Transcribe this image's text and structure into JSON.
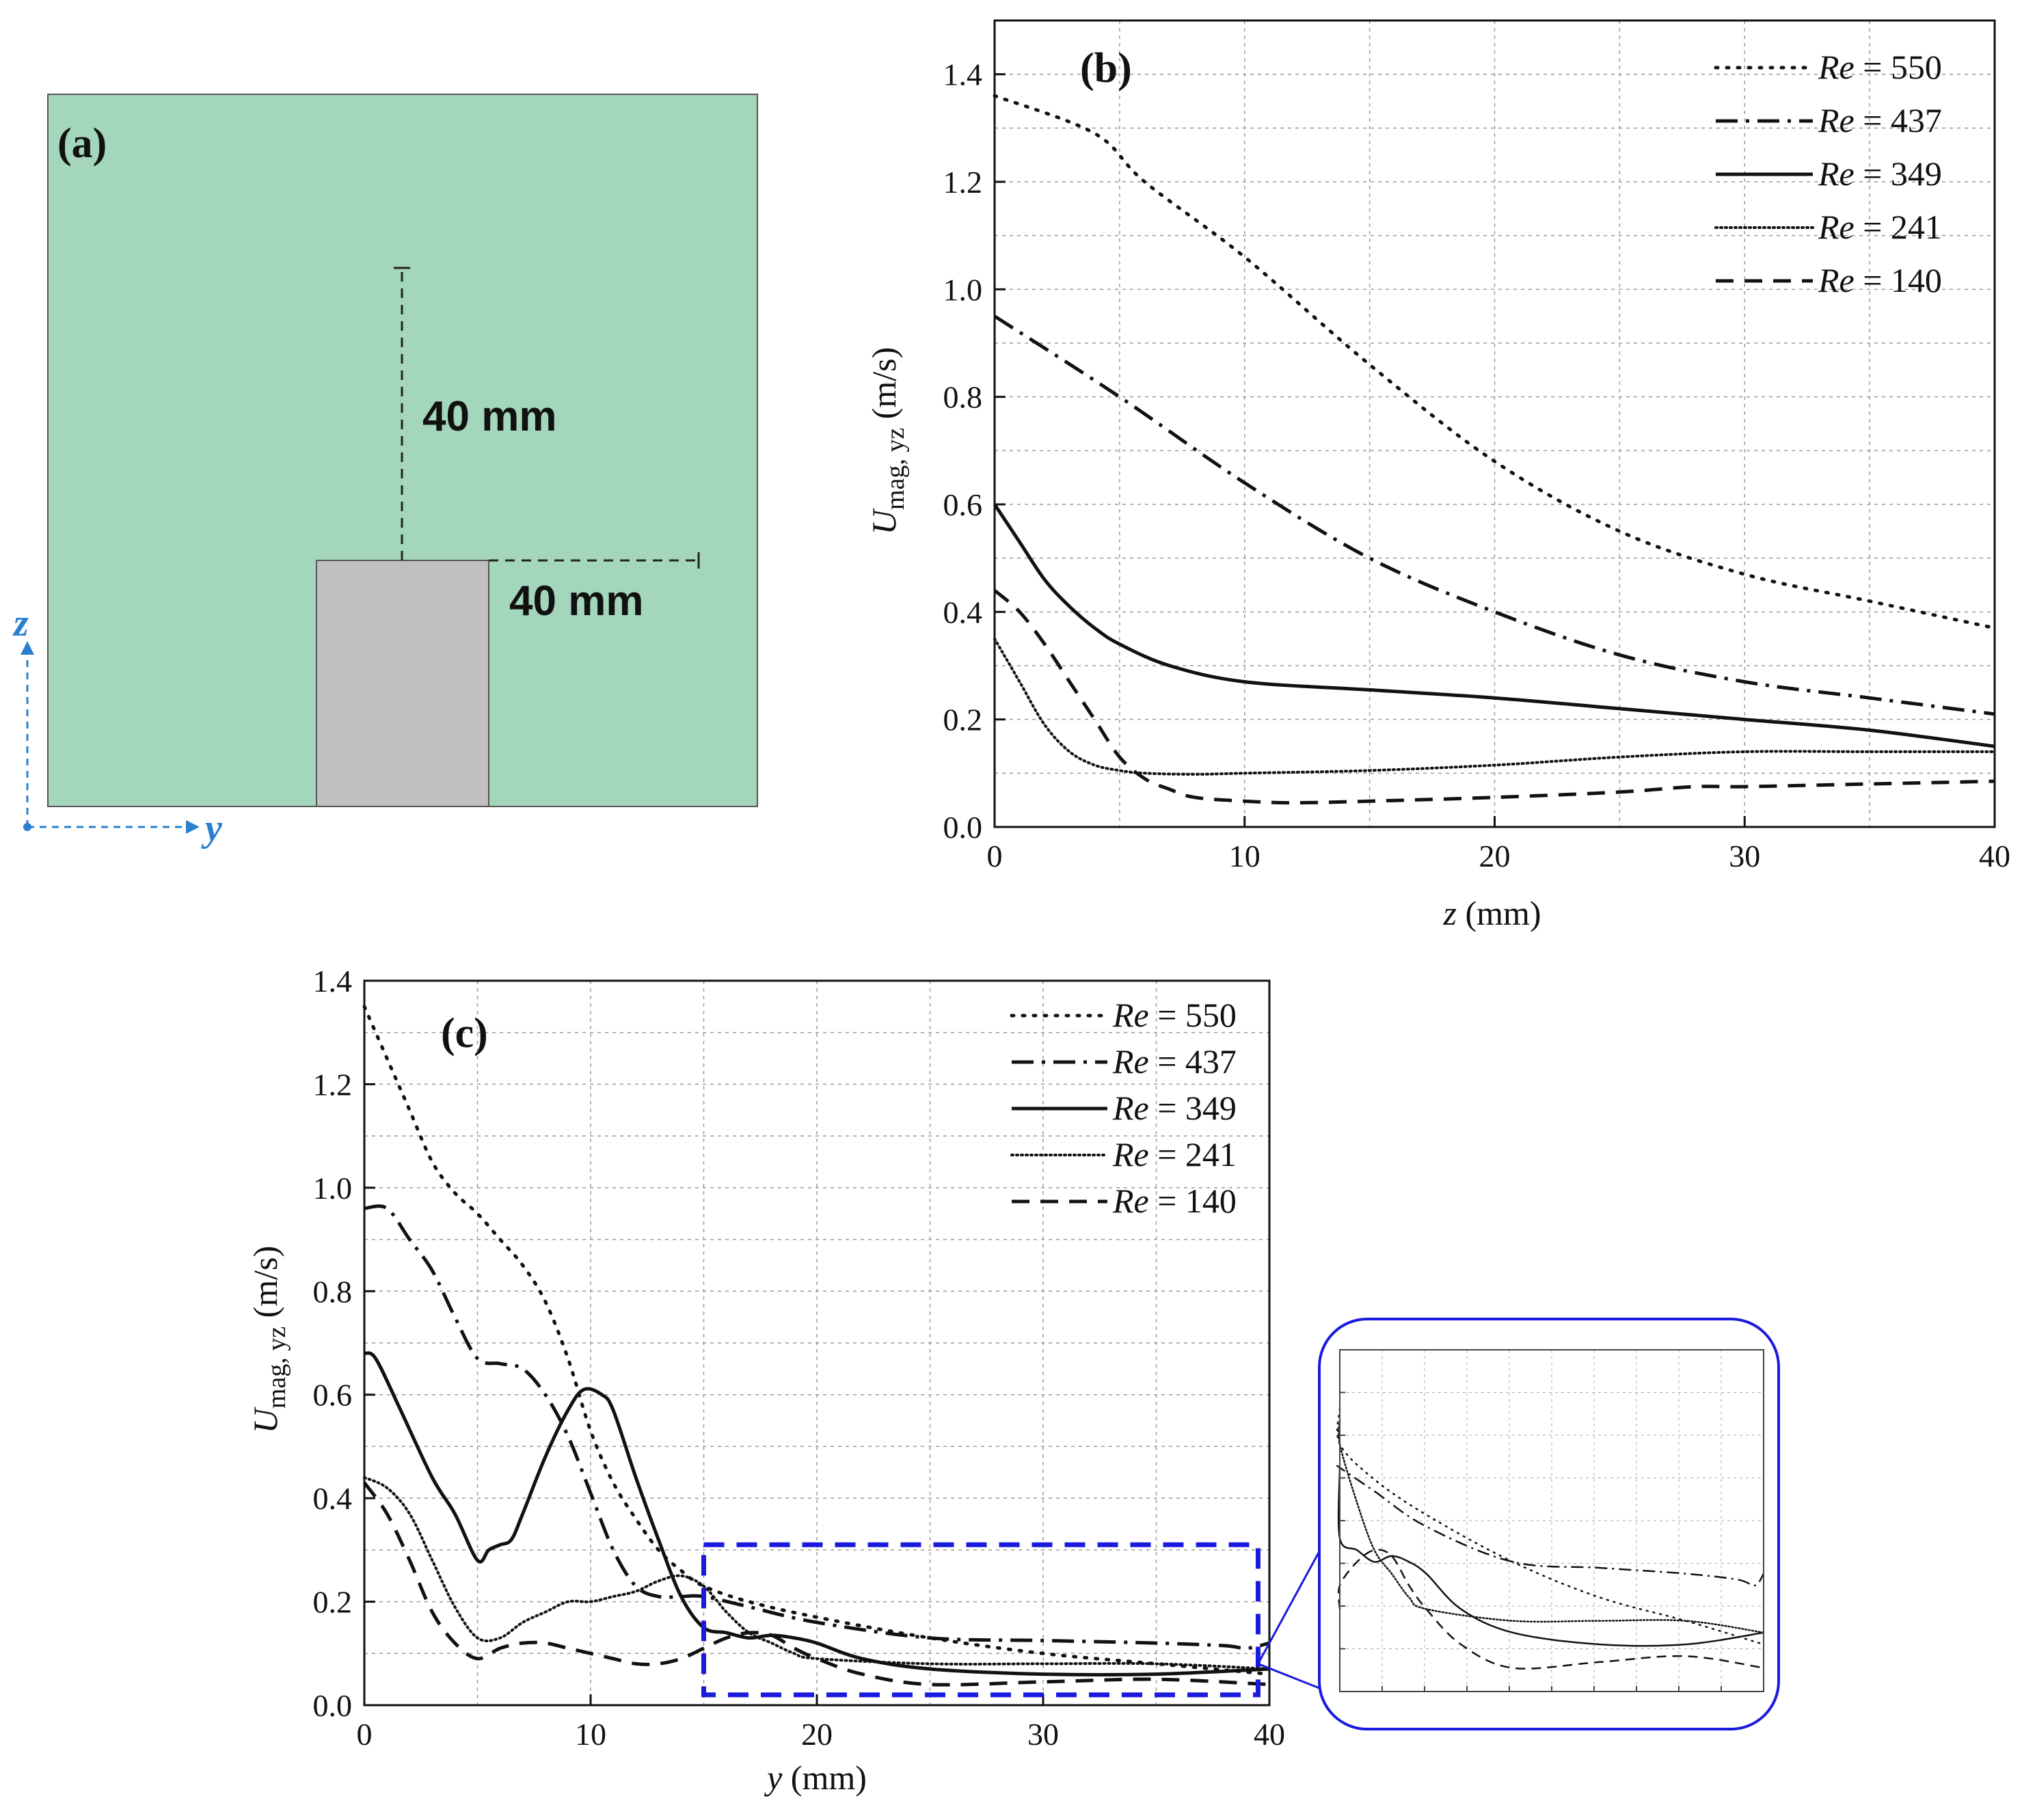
{
  "panel_a": {
    "label": "(a)",
    "dim_vertical": "40 mm",
    "dim_horizontal": "40 mm",
    "axis_z": "z",
    "axis_y": "y",
    "fluid_color": "#a4d6bb",
    "block_color": "#c0c0c0",
    "axis_color": "#2a7fd0"
  },
  "zoom_box_color": "#1a1adf",
  "chart_data": [
    {
      "id": "b",
      "type": "line",
      "panel_label": "(b)",
      "xlabel_italic": "z",
      "xlabel_rest": " (mm)",
      "ylabel_main": "U",
      "ylabel_sub": "mag, yz",
      "ylabel_unit": " (m/s)",
      "xlim": [
        0,
        40
      ],
      "ylim": [
        0,
        1.5
      ],
      "xticks": [
        0,
        10,
        20,
        30,
        40
      ],
      "xtick_labels": [
        "0",
        "10",
        "20",
        "30",
        "40"
      ],
      "yticks": [
        0,
        0.2,
        0.4,
        0.6,
        0.8,
        1.0,
        1.2,
        1.4
      ],
      "ytick_labels": [
        "0.0",
        "0.2",
        "0.4",
        "0.6",
        "0.8",
        "1.0",
        "1.2",
        "1.4"
      ],
      "grid": true,
      "legend_position": "top-right",
      "series": [
        {
          "name": "Re = 550",
          "re_italic": "Re",
          "re_value": " = 550",
          "style": "dot-spaced",
          "x": [
            0,
            4,
            6,
            10,
            15,
            20,
            25,
            30,
            35,
            40
          ],
          "y": [
            1.36,
            1.29,
            1.2,
            1.06,
            0.86,
            0.68,
            0.55,
            0.47,
            0.42,
            0.37
          ]
        },
        {
          "name": "Re = 437",
          "re_italic": "Re",
          "re_value": " = 437",
          "style": "dashdot",
          "x": [
            0,
            5,
            10,
            15,
            20,
            25,
            30,
            35,
            40
          ],
          "y": [
            0.95,
            0.8,
            0.64,
            0.5,
            0.4,
            0.32,
            0.27,
            0.24,
            0.21
          ]
        },
        {
          "name": "Re = 349",
          "re_italic": "Re",
          "re_value": " = 349",
          "style": "solid",
          "x": [
            0,
            1,
            2,
            3,
            4,
            5,
            7,
            10,
            15,
            20,
            25,
            30,
            35,
            40
          ],
          "y": [
            0.6,
            0.53,
            0.46,
            0.41,
            0.37,
            0.34,
            0.3,
            0.27,
            0.255,
            0.24,
            0.22,
            0.2,
            0.18,
            0.15
          ]
        },
        {
          "name": "Re = 241",
          "re_italic": "Re",
          "re_value": " = 241",
          "style": "dotted",
          "x": [
            0,
            1,
            2,
            3,
            4,
            5,
            6,
            8,
            10,
            15,
            20,
            25,
            30,
            35,
            40
          ],
          "y": [
            0.35,
            0.27,
            0.19,
            0.14,
            0.115,
            0.105,
            0.1,
            0.098,
            0.1,
            0.105,
            0.115,
            0.13,
            0.14,
            0.14,
            0.14
          ]
        },
        {
          "name": "Re = 140",
          "re_italic": "Re",
          "re_value": " = 140",
          "style": "dashed",
          "x": [
            0,
            1,
            2,
            3,
            4,
            5,
            6,
            7,
            8,
            10,
            12,
            15,
            20,
            25,
            28,
            30,
            35,
            40
          ],
          "y": [
            0.44,
            0.4,
            0.34,
            0.27,
            0.2,
            0.13,
            0.09,
            0.07,
            0.055,
            0.048,
            0.045,
            0.048,
            0.055,
            0.065,
            0.075,
            0.075,
            0.08,
            0.085
          ]
        }
      ]
    },
    {
      "id": "c",
      "type": "line",
      "panel_label": "(c)",
      "xlabel_italic": "y",
      "xlabel_rest": " (mm)",
      "ylabel_main": "U",
      "ylabel_sub": "mag, yz",
      "ylabel_unit": " (m/s)",
      "xlim": [
        0,
        40
      ],
      "ylim": [
        0,
        1.4
      ],
      "xticks": [
        0,
        10,
        20,
        30,
        40
      ],
      "xtick_labels": [
        "0",
        "10",
        "20",
        "30",
        "40"
      ],
      "yticks": [
        0,
        0.2,
        0.4,
        0.6,
        0.8,
        1.0,
        1.2,
        1.4
      ],
      "ytick_labels": [
        "0.0",
        "0.2",
        "0.4",
        "0.6",
        "0.8",
        "1.0",
        "1.2",
        "1.4"
      ],
      "grid": true,
      "legend_position": "top-right",
      "zoom_region": {
        "x": [
          15,
          39.5
        ],
        "y": [
          0.02,
          0.31
        ]
      },
      "series": [
        {
          "name": "Re = 550",
          "re_italic": "Re",
          "re_value": " = 550",
          "style": "dot-spaced",
          "x": [
            0,
            1,
            2,
            3,
            4,
            5,
            6,
            7,
            8,
            9,
            10,
            11,
            12,
            13,
            14,
            15,
            17,
            20,
            25,
            30,
            35,
            40
          ],
          "y": [
            1.35,
            1.25,
            1.15,
            1.05,
            0.99,
            0.95,
            0.9,
            0.85,
            0.78,
            0.67,
            0.53,
            0.43,
            0.36,
            0.3,
            0.26,
            0.23,
            0.2,
            0.17,
            0.13,
            0.1,
            0.08,
            0.06
          ]
        },
        {
          "name": "Re = 437",
          "re_italic": "Re",
          "re_value": " = 437",
          "style": "dashdot",
          "x": [
            0,
            1,
            2,
            3,
            4,
            5,
            6,
            7,
            8,
            9,
            10,
            11,
            12,
            13,
            14,
            15,
            17,
            20,
            25,
            30,
            35,
            38,
            39,
            40
          ],
          "y": [
            0.96,
            0.96,
            0.9,
            0.84,
            0.75,
            0.67,
            0.66,
            0.65,
            0.6,
            0.52,
            0.41,
            0.3,
            0.23,
            0.21,
            0.21,
            0.21,
            0.19,
            0.16,
            0.13,
            0.125,
            0.12,
            0.115,
            0.11,
            0.12
          ]
        },
        {
          "name": "Re = 349",
          "re_italic": "Re",
          "re_value": " = 349",
          "style": "solid",
          "x": [
            0,
            0.5,
            1.5,
            3,
            4,
            5,
            5.5,
            6,
            6.5,
            7,
            8,
            9,
            9.7,
            10.5,
            11,
            12,
            13,
            14,
            15,
            16,
            17,
            18,
            19,
            20,
            22,
            25,
            30,
            35,
            40
          ],
          "y": [
            0.68,
            0.67,
            0.58,
            0.44,
            0.37,
            0.28,
            0.3,
            0.31,
            0.32,
            0.37,
            0.48,
            0.57,
            0.61,
            0.6,
            0.57,
            0.44,
            0.32,
            0.21,
            0.15,
            0.14,
            0.13,
            0.135,
            0.13,
            0.12,
            0.09,
            0.07,
            0.06,
            0.06,
            0.07
          ]
        },
        {
          "name": "Re = 241",
          "re_italic": "Re",
          "re_value": " = 241",
          "style": "dotted",
          "x": [
            0,
            1,
            2,
            3,
            4,
            5,
            6,
            7,
            8,
            9,
            10,
            11,
            12,
            13,
            14,
            15,
            16,
            17,
            18,
            19,
            20,
            25,
            30,
            35,
            40
          ],
          "y": [
            0.44,
            0.42,
            0.37,
            0.28,
            0.19,
            0.13,
            0.13,
            0.16,
            0.18,
            0.2,
            0.2,
            0.21,
            0.22,
            0.24,
            0.25,
            0.23,
            0.18,
            0.14,
            0.12,
            0.1,
            0.09,
            0.08,
            0.08,
            0.08,
            0.07
          ]
        },
        {
          "name": "Re = 140",
          "re_italic": "Re",
          "re_value": " = 140",
          "style": "dashed",
          "x": [
            0,
            1,
            2,
            3,
            4,
            5,
            6,
            7,
            8,
            9,
            10,
            11,
            12,
            13,
            14,
            15,
            16,
            17,
            18,
            19,
            20,
            22,
            25,
            30,
            35,
            40
          ],
          "y": [
            0.43,
            0.37,
            0.28,
            0.18,
            0.12,
            0.09,
            0.11,
            0.12,
            0.12,
            0.11,
            0.1,
            0.09,
            0.08,
            0.08,
            0.09,
            0.11,
            0.13,
            0.14,
            0.135,
            0.11,
            0.09,
            0.06,
            0.04,
            0.045,
            0.05,
            0.04
          ]
        }
      ]
    }
  ]
}
